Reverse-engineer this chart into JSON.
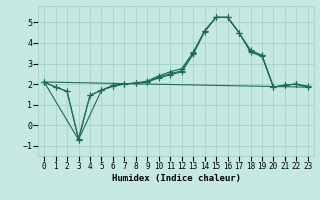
{
  "xlabel": "Humidex (Indice chaleur)",
  "xlim": [
    -0.5,
    23.5
  ],
  "ylim": [
    -1.5,
    5.8
  ],
  "yticks": [
    -1,
    0,
    1,
    2,
    3,
    4,
    5
  ],
  "xticks": [
    0,
    1,
    2,
    3,
    4,
    5,
    6,
    7,
    8,
    9,
    10,
    11,
    12,
    13,
    14,
    15,
    16,
    17,
    18,
    19,
    20,
    21,
    22,
    23
  ],
  "bg_color": "#c5e8e0",
  "grid_color": "#9ecec4",
  "line_color": "#1e6b5e",
  "series": [
    {
      "x": [
        0,
        1,
        2,
        3,
        4,
        5,
        6,
        7,
        8,
        9,
        10,
        11,
        12,
        13,
        14,
        15,
        16,
        17,
        18,
        19,
        20,
        21,
        22,
        23
      ],
      "y": [
        2.1,
        1.85,
        1.65,
        -0.7,
        1.45,
        1.7,
        1.9,
        2.0,
        2.05,
        2.1,
        2.3,
        2.45,
        2.6,
        3.45,
        4.55,
        5.25,
        5.25,
        4.5,
        3.55,
        3.35,
        1.85,
        1.95,
        2.0,
        1.85
      ],
      "marker": "+"
    },
    {
      "x": [
        0,
        1,
        2,
        3,
        4,
        5,
        6,
        7,
        8,
        9,
        10,
        11,
        12,
        13,
        14,
        15,
        16,
        17,
        18,
        19,
        20,
        21,
        22,
        23
      ],
      "y": [
        2.1,
        1.85,
        1.65,
        -0.65,
        1.45,
        1.7,
        1.95,
        2.0,
        2.05,
        2.15,
        2.4,
        2.6,
        2.75,
        3.55,
        4.6,
        5.25,
        5.25,
        4.5,
        3.65,
        3.4,
        1.85,
        1.95,
        2.0,
        1.9
      ],
      "marker": "+"
    },
    {
      "x": [
        0,
        3,
        5,
        6,
        7,
        8,
        9,
        10,
        11,
        12,
        13,
        14,
        15,
        16,
        17,
        18,
        19,
        20,
        21,
        22,
        23
      ],
      "y": [
        2.1,
        -0.7,
        1.7,
        1.9,
        2.0,
        2.05,
        2.1,
        2.35,
        2.5,
        2.65,
        3.5,
        4.6,
        5.25,
        5.25,
        4.5,
        3.6,
        3.4,
        1.85,
        1.95,
        2.0,
        1.85
      ],
      "marker": "+"
    },
    {
      "x": [
        0,
        23
      ],
      "y": [
        2.1,
        1.85
      ],
      "marker": null
    }
  ]
}
